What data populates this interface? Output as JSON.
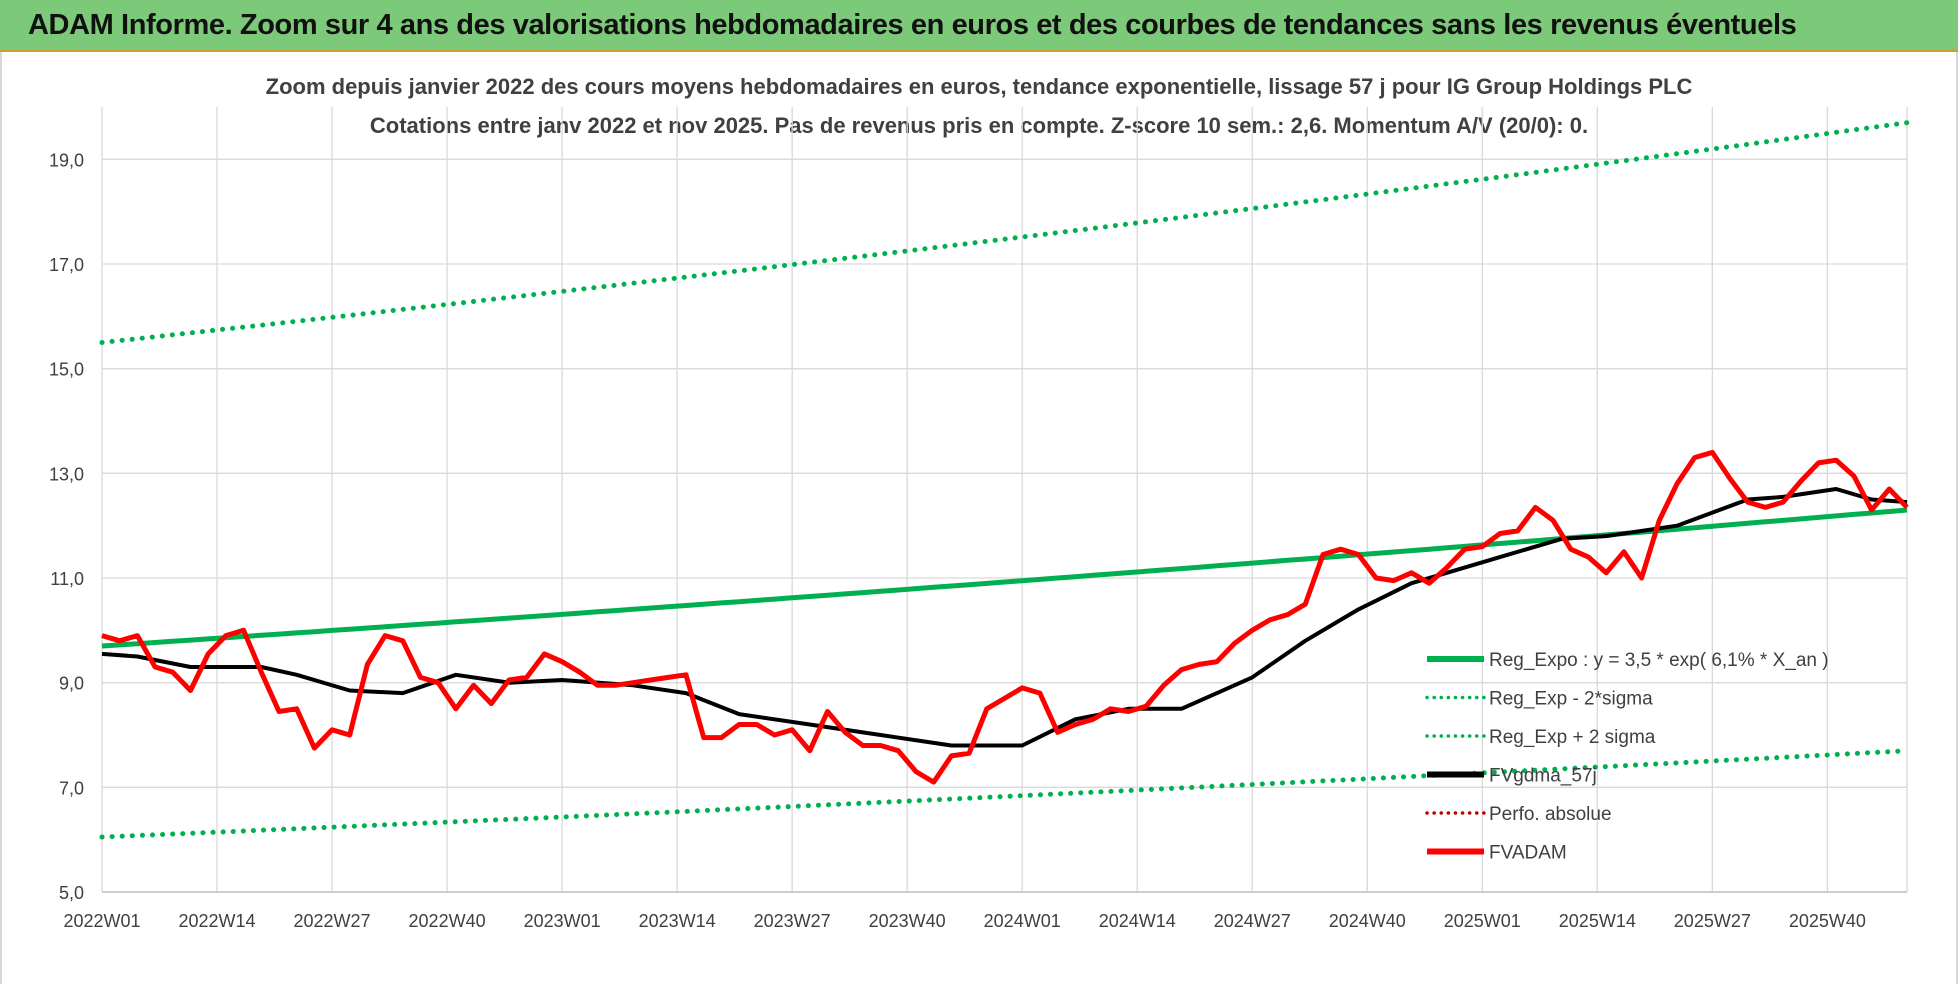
{
  "banner": {
    "title": "ADAM Informe. Zoom sur 4 ans des valorisations hebdomadaires en euros et des courbes de tendances sans les revenus éventuels"
  },
  "colors": {
    "banner": "#7dc97a",
    "reg_expo": "#00b050",
    "fvgdma": "#000000",
    "fvadam": "#ff0000",
    "perfo": "#c00000",
    "grid": "#d9d9d9",
    "text": "#404040"
  },
  "chart_data": {
    "type": "line",
    "title": "Zoom depuis janvier 2022 des cours moyens hebdomadaires en euros, tendance exponentielle, lissage 57 j pour IG Group Holdings PLC",
    "subtitle": "Cotations entre janv 2022 et nov 2025. Pas de revenus pris en compte. Z-score 10 sem.: 2,6. Momentum A/V (20/0): 0.",
    "ylim": [
      5,
      20
    ],
    "yticks": [
      "5,0",
      "7,0",
      "9,0",
      "11,0",
      "13,0",
      "15,0",
      "17,0",
      "19,0"
    ],
    "ytick_values": [
      5,
      7,
      9,
      11,
      13,
      15,
      17,
      19
    ],
    "xticks": [
      "2022W01",
      "2022W14",
      "2022W27",
      "2022W40",
      "2023W01",
      "2023W14",
      "2023W27",
      "2023W40",
      "2024W01",
      "2024W14",
      "2024W27",
      "2024W40",
      "2025W01",
      "2025W14",
      "2025W27",
      "2025W40"
    ],
    "week_count": 205,
    "grid": "vertical+horizontal",
    "legend_position": "right",
    "series": [
      {
        "name": "Reg_Expo : y = 3,5 * exp( 6,1% *  X_an )",
        "key": "reg",
        "style": "solid",
        "color": "#00b050",
        "start": 9.7,
        "end": 12.3
      },
      {
        "name": "Reg_Exp - 2*sigma",
        "key": "lo",
        "style": "dotted",
        "color": "#00b050",
        "start": 6.05,
        "end": 7.7
      },
      {
        "name": "Reg_Exp + 2 sigma",
        "key": "hi",
        "style": "dotted",
        "color": "#00b050",
        "start": 15.5,
        "end": 19.7
      },
      {
        "name": "FVgdma_57j",
        "key": "ma",
        "style": "solid",
        "color": "#000000",
        "x": [
          0,
          4,
          10,
          18,
          22,
          28,
          34,
          40,
          46,
          52,
          60,
          66,
          72,
          80,
          88,
          96,
          104,
          110,
          116,
          122,
          130,
          136,
          142,
          148,
          152,
          158,
          165,
          170,
          178,
          186,
          190,
          196,
          200,
          204
        ],
        "y": [
          9.55,
          9.5,
          9.3,
          9.3,
          9.15,
          8.85,
          8.8,
          9.15,
          9.0,
          9.05,
          8.95,
          8.8,
          8.4,
          8.2,
          8.0,
          7.8,
          7.8,
          8.3,
          8.5,
          8.5,
          9.1,
          9.8,
          10.4,
          10.9,
          11.1,
          11.4,
          11.75,
          11.8,
          12.0,
          12.5,
          12.55,
          12.7,
          12.5,
          12.45
        ]
      },
      {
        "name": "Perfo. absolue",
        "key": "perfo",
        "style": "dotted",
        "color": "#c00000"
      },
      {
        "name": "FVADAM",
        "key": "fv",
        "style": "solid",
        "color": "#ff0000",
        "x": [
          0,
          2,
          4,
          6,
          8,
          10,
          12,
          14,
          16,
          18,
          20,
          22,
          24,
          26,
          28,
          30,
          32,
          34,
          36,
          38,
          40,
          42,
          44,
          46,
          48,
          50,
          52,
          54,
          56,
          58,
          60,
          62,
          64,
          66,
          68,
          70,
          72,
          74,
          76,
          78,
          80,
          82,
          84,
          86,
          88,
          90,
          92,
          94,
          96,
          98,
          100,
          102,
          104,
          106,
          108,
          110,
          112,
          114,
          116,
          118,
          120,
          122,
          124,
          126,
          128,
          130,
          132,
          134,
          136,
          138,
          140,
          142,
          144,
          146,
          148,
          150,
          152,
          154,
          156,
          158,
          160,
          162,
          164,
          166,
          168,
          170,
          172,
          174,
          176,
          178,
          180,
          182,
          184,
          186,
          188,
          190,
          192,
          194,
          196,
          198,
          200,
          202,
          204
        ],
        "y": [
          9.9,
          9.8,
          9.9,
          9.3,
          9.2,
          8.85,
          9.55,
          9.9,
          10.0,
          9.2,
          8.45,
          8.5,
          7.75,
          8.1,
          8.0,
          9.35,
          9.9,
          9.8,
          9.1,
          9.0,
          8.5,
          8.95,
          8.6,
          9.05,
          9.1,
          9.55,
          9.4,
          9.2,
          8.95,
          8.95,
          9.0,
          9.05,
          9.1,
          9.15,
          7.95,
          7.95,
          8.2,
          8.2,
          8.0,
          8.1,
          7.7,
          8.45,
          8.05,
          7.8,
          7.8,
          7.7,
          7.3,
          7.1,
          7.6,
          7.65,
          8.5,
          8.7,
          8.9,
          8.8,
          8.05,
          8.2,
          8.3,
          8.5,
          8.45,
          8.55,
          8.95,
          9.25,
          9.35,
          9.4,
          9.75,
          10.0,
          10.2,
          10.3,
          10.5,
          11.45,
          11.55,
          11.45,
          11.0,
          10.95,
          11.1,
          10.9,
          11.2,
          11.55,
          11.6,
          11.85,
          11.9,
          12.35,
          12.1,
          11.55,
          11.4,
          11.1,
          11.5,
          11.0,
          12.1,
          12.8,
          13.3,
          13.4,
          12.9,
          12.45,
          12.35,
          12.45,
          12.85,
          13.2,
          13.25,
          12.95,
          12.3,
          12.7,
          12.35
        ]
      }
    ]
  }
}
